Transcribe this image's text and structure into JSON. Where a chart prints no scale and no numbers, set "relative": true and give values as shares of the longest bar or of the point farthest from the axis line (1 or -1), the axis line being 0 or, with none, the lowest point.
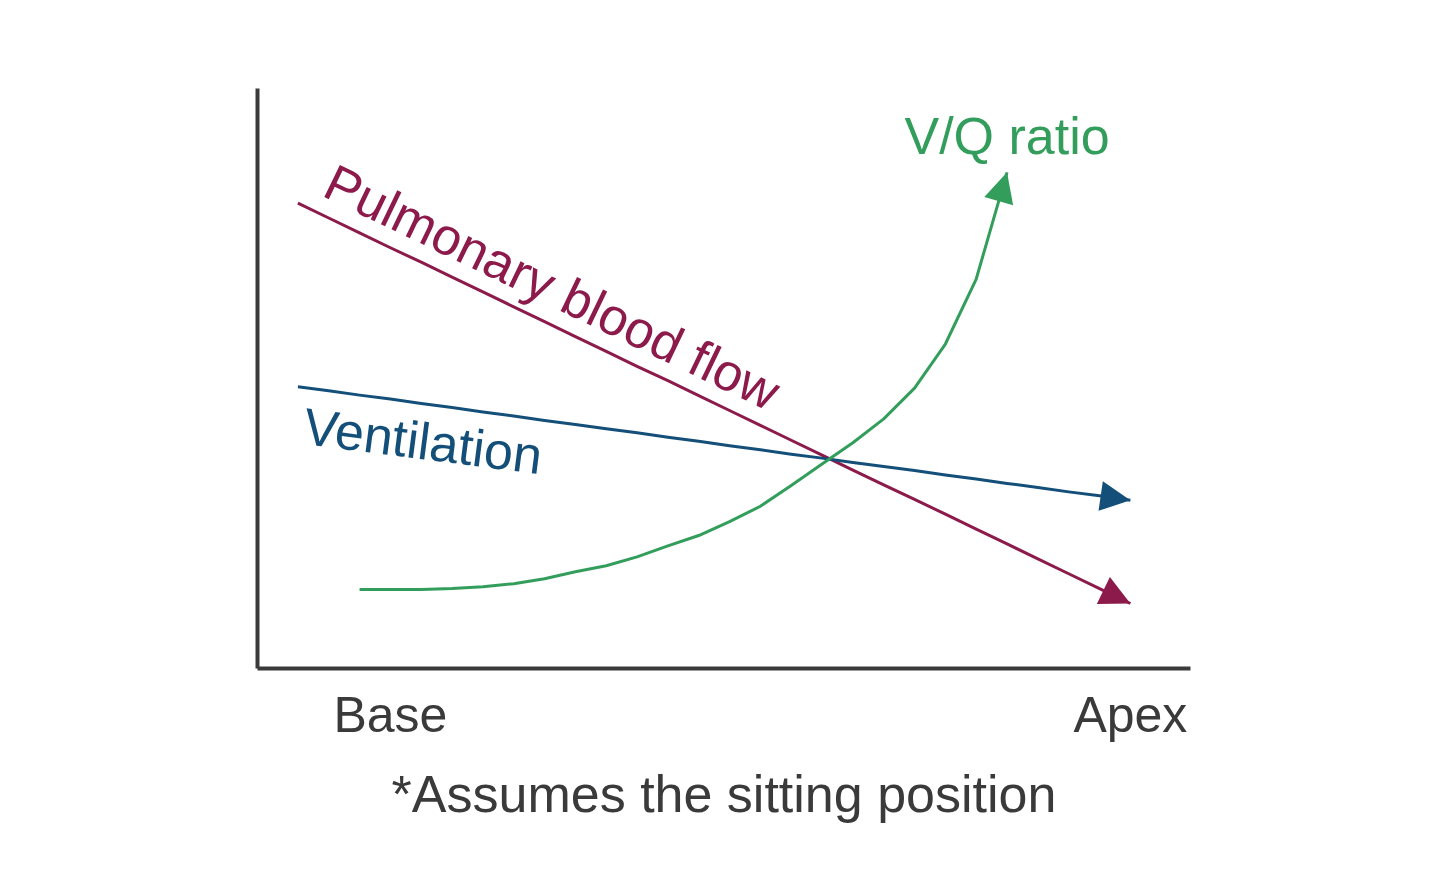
{
  "chart_data": {
    "type": "line",
    "relative": true,
    "grid": false,
    "line_style": "solid",
    "categories": [
      null,
      null,
      null,
      "Base",
      null,
      null,
      null,
      null,
      null,
      null,
      null,
      null,
      null,
      null,
      null,
      null,
      null,
      null,
      null,
      null,
      null,
      null,
      null,
      null,
      null,
      null,
      null,
      "Apex"
    ],
    "annotations": [
      "*Assumes the sitting position"
    ],
    "series": [
      {
        "name": "Pulmonary blood flow",
        "color": "#8c1a4b",
        "values": [
          0.938,
          0.908,
          0.878,
          0.848,
          0.819,
          0.789,
          0.759,
          0.729,
          0.699,
          0.669,
          0.639,
          0.609,
          0.58,
          0.55,
          0.52,
          0.49,
          0.46,
          0.43,
          0.4,
          0.37,
          0.341,
          0.311,
          0.281,
          0.251,
          0.221,
          0.191,
          0.161,
          0.131
        ]
      },
      {
        "name": "Ventilation",
        "color": "#134f79",
        "values": [
          0.568,
          0.56,
          0.551,
          0.543,
          0.534,
          0.526,
          0.517,
          0.509,
          0.5,
          0.492,
          0.483,
          0.475,
          0.466,
          0.458,
          0.449,
          0.441,
          0.432,
          0.424,
          0.415,
          0.407,
          0.399,
          0.39,
          0.382,
          0.373,
          0.365,
          0.356,
          0.348,
          0.339
        ]
      },
      {
        "name": "V/Q ratio",
        "color": "#339e5c",
        "values": [
          null,
          null,
          0.159,
          0.159,
          0.159,
          0.161,
          0.165,
          0.171,
          0.181,
          0.195,
          0.207,
          0.225,
          0.247,
          0.268,
          0.296,
          0.327,
          0.369,
          0.412,
          0.455,
          0.503,
          0.565,
          0.654,
          0.785,
          1.0,
          null,
          null,
          null,
          null
        ]
      }
    ]
  }
}
